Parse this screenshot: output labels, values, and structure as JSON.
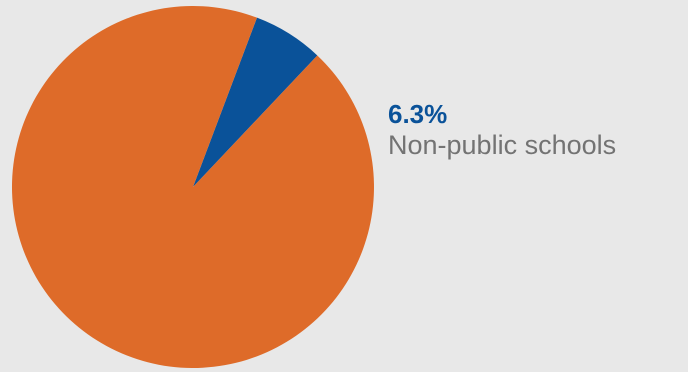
{
  "chart_data": {
    "type": "pie",
    "slices": [
      {
        "label": "Non-public schools",
        "value": 6.3,
        "display": "6.3%",
        "color": "#0a5299"
      },
      {
        "label": "",
        "value": 93.7,
        "display": "",
        "color": "#de6b29"
      }
    ],
    "start_angle_deg": -69.3
  },
  "labels": {
    "non_public_value": "6.3%",
    "non_public_name": "Non-public schools"
  },
  "colors": {
    "background": "#e8e8e8",
    "highlight": "#0a5299",
    "main": "#de6b29",
    "label_text": "#737373"
  }
}
